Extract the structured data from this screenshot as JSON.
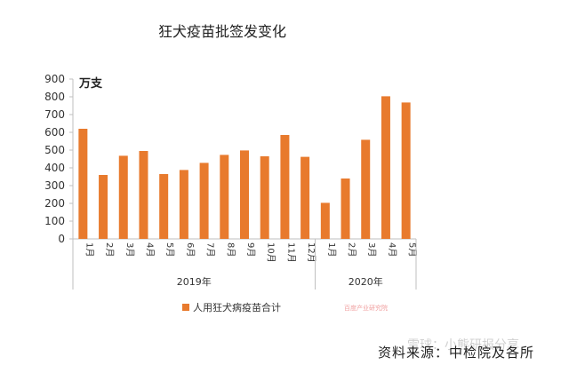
{
  "chart_data": {
    "type": "bar",
    "title": "狂犬疫苗批签发变化",
    "ylabel": "万支",
    "ylim": [
      0,
      900
    ],
    "yticks": [
      0,
      100,
      200,
      300,
      400,
      500,
      600,
      700,
      800,
      900
    ],
    "categories": [
      "1月",
      "2月",
      "3月",
      "4月",
      "5月",
      "6月",
      "7月",
      "8月",
      "9月",
      "10月",
      "11月",
      "12月",
      "1月",
      "2月",
      "3月",
      "4月",
      "5月"
    ],
    "groups": [
      {
        "label": "2019年",
        "count": 12
      },
      {
        "label": "2020年",
        "count": 5
      }
    ],
    "series": [
      {
        "name": "人用狂犬病疫苗合计",
        "color": "#E87A2D",
        "values": [
          620,
          360,
          468,
          495,
          365,
          388,
          428,
          473,
          498,
          465,
          585,
          462,
          203,
          340,
          558,
          803,
          768
        ]
      }
    ]
  },
  "source": "资料来源：中检院及各所",
  "watermark": "百度产业研究院",
  "brand_watermark": "雪球：小熊研报分享"
}
